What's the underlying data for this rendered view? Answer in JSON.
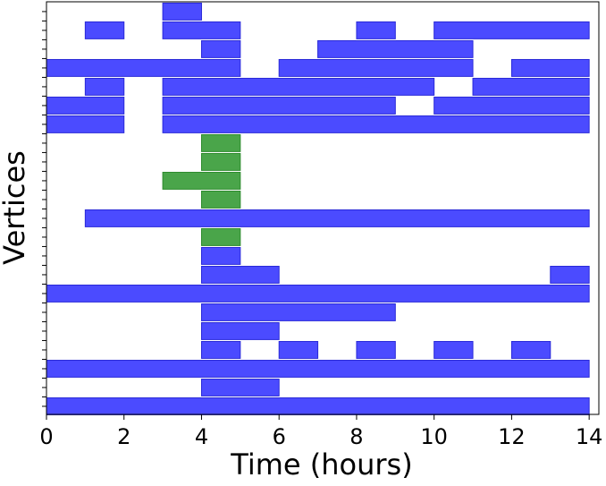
{
  "chart_data": {
    "type": "broken_bar",
    "xlabel": "Time (hours)",
    "ylabel": "Vertices",
    "xlim": [
      0,
      14.25
    ],
    "xticks": [
      0,
      2,
      4,
      6,
      8,
      10,
      12,
      14
    ],
    "ylim": [
      -0.43,
      21.52
    ],
    "yticks": [
      0,
      0.5,
      1,
      1.5,
      2,
      2.5,
      3,
      3.5,
      4,
      4.5,
      5,
      5.5,
      6,
      6.5,
      7,
      7.5,
      8,
      8.5,
      9,
      9.5,
      10,
      10.5,
      11,
      11.5,
      12,
      12.5,
      13,
      13.5,
      14,
      14.5,
      15,
      15.5,
      16,
      16.5,
      17,
      17.5,
      18,
      18.5,
      19,
      19.5,
      20,
      20.5,
      21
    ],
    "rows": [
      {
        "y": 21,
        "color": "#4b4bff",
        "segments": [
          [
            3,
            4
          ]
        ]
      },
      {
        "y": 20,
        "color": "#4b4bff",
        "segments": [
          [
            1,
            2
          ],
          [
            3,
            5
          ],
          [
            8,
            9
          ],
          [
            10,
            14
          ]
        ]
      },
      {
        "y": 19,
        "color": "#4b4bff",
        "segments": [
          [
            4,
            5
          ],
          [
            7,
            11
          ]
        ]
      },
      {
        "y": 18,
        "color": "#4b4bff",
        "segments": [
          [
            0,
            5
          ],
          [
            6,
            11
          ],
          [
            12,
            14
          ]
        ]
      },
      {
        "y": 17,
        "color": "#4b4bff",
        "segments": [
          [
            1,
            2
          ],
          [
            3,
            10
          ],
          [
            11,
            14
          ]
        ]
      },
      {
        "y": 16,
        "color": "#4b4bff",
        "segments": [
          [
            0,
            2
          ],
          [
            3,
            9
          ],
          [
            10,
            14
          ]
        ]
      },
      {
        "y": 15,
        "color": "#4b4bff",
        "segments": [
          [
            0,
            2
          ],
          [
            3,
            14
          ]
        ]
      },
      {
        "y": 14,
        "color": "#4aa54a",
        "segments": [
          [
            4,
            5
          ]
        ]
      },
      {
        "y": 13,
        "color": "#4aa54a",
        "segments": [
          [
            4,
            5
          ]
        ]
      },
      {
        "y": 12,
        "color": "#4aa54a",
        "segments": [
          [
            3,
            5
          ]
        ]
      },
      {
        "y": 11,
        "color": "#4aa54a",
        "segments": [
          [
            4,
            5
          ]
        ]
      },
      {
        "y": 10,
        "color": "#4b4bff",
        "segments": [
          [
            1,
            14
          ]
        ]
      },
      {
        "y": 9,
        "color": "#4aa54a",
        "segments": [
          [
            4,
            5
          ]
        ]
      },
      {
        "y": 8,
        "color": "#4b4bff",
        "segments": [
          [
            4,
            5
          ]
        ]
      },
      {
        "y": 7,
        "color": "#4b4bff",
        "segments": [
          [
            4,
            6
          ],
          [
            13,
            14
          ]
        ]
      },
      {
        "y": 6,
        "color": "#4b4bff",
        "segments": [
          [
            0,
            14
          ]
        ]
      },
      {
        "y": 5,
        "color": "#4b4bff",
        "segments": [
          [
            4,
            9
          ]
        ]
      },
      {
        "y": 4,
        "color": "#4b4bff",
        "segments": [
          [
            4,
            6
          ]
        ]
      },
      {
        "y": 3,
        "color": "#4b4bff",
        "segments": [
          [
            4,
            5
          ],
          [
            6,
            7
          ],
          [
            8,
            9
          ],
          [
            10,
            11
          ],
          [
            12,
            13
          ]
        ]
      },
      {
        "y": 2,
        "color": "#4b4bff",
        "segments": [
          [
            0,
            14
          ]
        ]
      },
      {
        "y": 1,
        "color": "#4b4bff",
        "segments": [
          [
            4,
            6
          ]
        ]
      },
      {
        "y": 0,
        "color": "#4b4bff",
        "segments": [
          [
            0,
            14
          ]
        ]
      }
    ]
  }
}
